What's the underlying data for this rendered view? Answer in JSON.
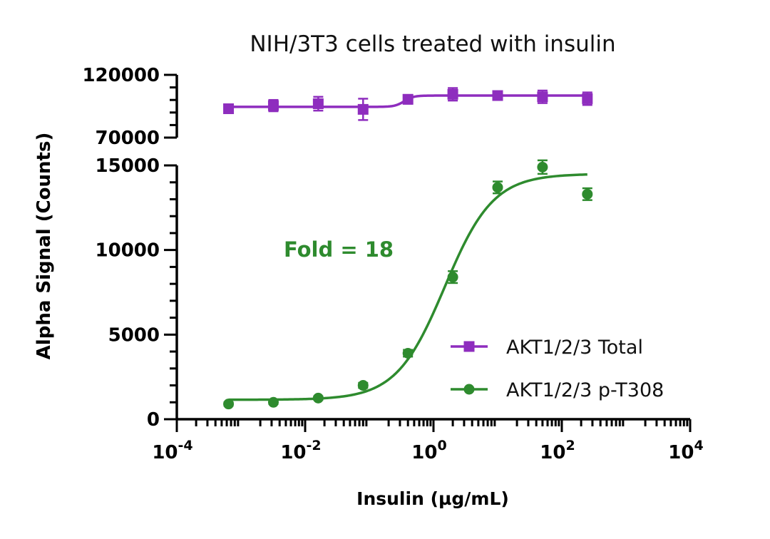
{
  "chart_data": {
    "type": "scatter",
    "title": "NIH/3T3 cells treated with insulin",
    "xlabel": "Insulin (µg/mL)",
    "ylabel": "Alpha Signal (Counts)",
    "x_scale": "log",
    "xlim": [
      0.0001,
      10000
    ],
    "x_ticks": [
      {
        "value": 0.0001,
        "base": "10",
        "exp": "-4"
      },
      {
        "value": 0.01,
        "base": "10",
        "exp": "-2"
      },
      {
        "value": 1,
        "base": "10",
        "exp": "0"
      },
      {
        "value": 100,
        "base": "10",
        "exp": "2"
      },
      {
        "value": 10000,
        "base": "10",
        "exp": "4"
      }
    ],
    "y_axis_break": true,
    "ylim_lower": [
      0,
      15000
    ],
    "y_ticks_lower": [
      {
        "value": 0,
        "label": "0"
      },
      {
        "value": 5000,
        "label": "5000"
      },
      {
        "value": 10000,
        "label": "10000"
      },
      {
        "value": 15000,
        "label": "15000"
      }
    ],
    "ylim_upper": [
      70000,
      120000
    ],
    "y_ticks_upper": [
      {
        "value": 70000,
        "label": "70000"
      },
      {
        "value": 120000,
        "label": "120000"
      }
    ],
    "legend_position": "bottom-right",
    "annotation": {
      "text": "Fold = 18",
      "color": "#2e8b2e"
    },
    "series": [
      {
        "name": "AKT1/2/3 Total",
        "marker": "square",
        "color": "#8e2dbe",
        "axis": "upper",
        "x": [
          0.00064,
          0.0032,
          0.016,
          0.08,
          0.4,
          2,
          10,
          50,
          250
        ],
        "y": [
          93000,
          95500,
          97000,
          92500,
          100500,
          104500,
          103500,
          102500,
          101000
        ],
        "err": [
          2500,
          4500,
          5500,
          8500,
          3500,
          5000,
          2000,
          5000,
          5000
        ],
        "fit": {
          "bottom": 94500,
          "top": 103500,
          "ec50": 0.35,
          "hill": 6
        }
      },
      {
        "name": "AKT1/2/3 p-T308",
        "marker": "circle",
        "color": "#2e8b2e",
        "axis": "lower",
        "x": [
          0.00064,
          0.0032,
          0.016,
          0.08,
          0.4,
          2,
          10,
          50,
          250
        ],
        "y": [
          900,
          1000,
          1250,
          2000,
          3900,
          8400,
          13700,
          14900,
          13300
        ],
        "err": [
          100,
          100,
          100,
          150,
          200,
          350,
          350,
          400,
          350
        ],
        "fit": {
          "bottom": 1150,
          "top": 14500,
          "ec50": 1.5,
          "hill": 1.15
        }
      }
    ]
  }
}
